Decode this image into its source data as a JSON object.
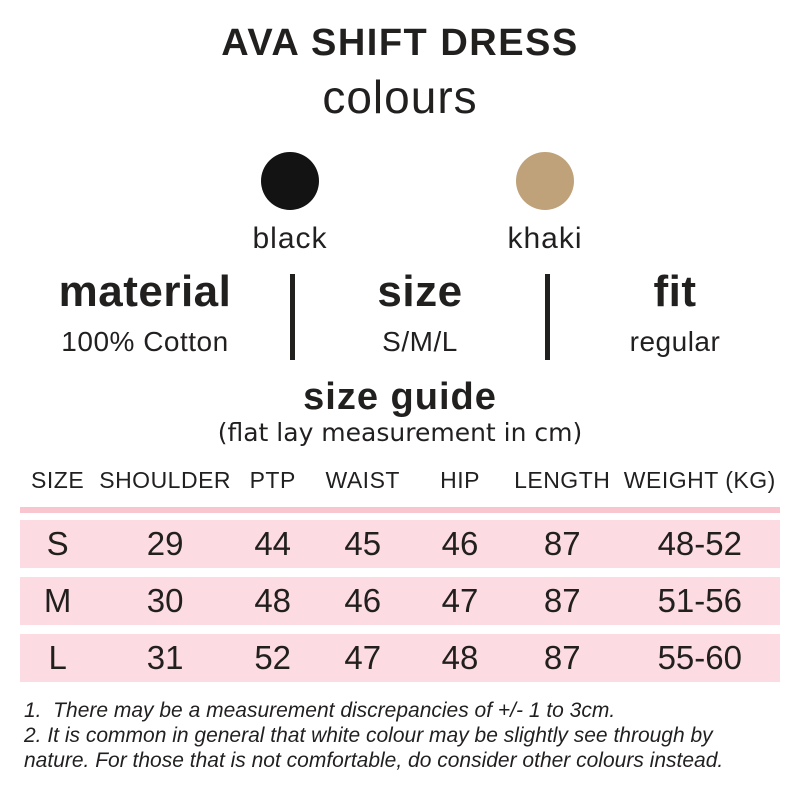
{
  "title": "AVA SHIFT DRESS",
  "subtitle": "colours",
  "colors": {
    "swatches": [
      {
        "name": "black",
        "hex": "#131313"
      },
      {
        "name": "khaki",
        "hex": "#bfa27a"
      }
    ]
  },
  "specs": [
    {
      "label": "material",
      "value": "100% Cotton"
    },
    {
      "label": "size",
      "value": "S/M/L"
    },
    {
      "label": "fit",
      "value": "regular"
    }
  ],
  "size_guide": {
    "title": "size guide",
    "subtitle": "(flat lay measurement in cm)",
    "columns": [
      "SIZE",
      "SHOULDER",
      "PTP",
      "WAIST",
      "HIP",
      "LENGTH",
      "WEIGHT (KG)"
    ],
    "rows": [
      [
        "S",
        "29",
        "44",
        "45",
        "46",
        "87",
        "48-52"
      ],
      [
        "M",
        "30",
        "48",
        "46",
        "47",
        "87",
        "51-56"
      ],
      [
        "L",
        "31",
        "52",
        "47",
        "48",
        "87",
        "55-60"
      ]
    ]
  },
  "notes": [
    "1.  There may be a measurement discrepancies of +/- 1 to 3cm.",
    "2. It is common in general that white colour may be slightly see through by nature. For those that is not comfortable, do consider other colours instead."
  ],
  "theme": {
    "row_pink": "#fcdce2",
    "rule_pink": "#f9c6cf",
    "text": "#221f1f"
  }
}
